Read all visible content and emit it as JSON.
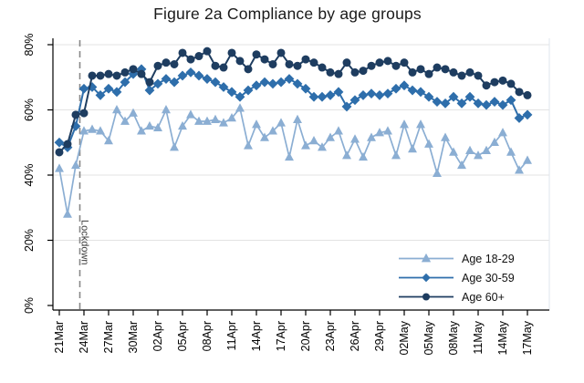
{
  "title": "Figure 2a Compliance by age groups",
  "chart_data": {
    "type": "line",
    "title": "Figure 2a Compliance by age groups",
    "grid": "horizontal",
    "legend_position": "bottom-right",
    "ylim": [
      0,
      84
    ],
    "y_tick_labels": [
      "0%",
      "20%",
      "40%",
      "60%",
      "80%"
    ],
    "y_tick_values": [
      0,
      20,
      40,
      60,
      80
    ],
    "x_tick_every_days": 3,
    "annotation": {
      "text": "Lockdown",
      "between_dates": [
        "23Mar",
        "24Mar"
      ],
      "style": "dashed-vertical-line"
    },
    "x_dates": [
      "21Mar",
      "22Mar",
      "23Mar",
      "24Mar",
      "25Mar",
      "26Mar",
      "27Mar",
      "28Mar",
      "29Mar",
      "30Mar",
      "31Mar",
      "01Apr",
      "02Apr",
      "03Apr",
      "04Apr",
      "05Apr",
      "06Apr",
      "07Apr",
      "08Apr",
      "09Apr",
      "10Apr",
      "11Apr",
      "12Apr",
      "13Apr",
      "14Apr",
      "15Apr",
      "16Apr",
      "17Apr",
      "18Apr",
      "19Apr",
      "20Apr",
      "21Apr",
      "22Apr",
      "23Apr",
      "24Apr",
      "25Apr",
      "26Apr",
      "27Apr",
      "28Apr",
      "29Apr",
      "30Apr",
      "01May",
      "02May",
      "03May",
      "04May",
      "05May",
      "06May",
      "07May",
      "08May",
      "09May",
      "10May",
      "11May",
      "12May",
      "13May",
      "14May",
      "15May",
      "16May",
      "17May"
    ],
    "series": [
      {
        "name": "Age 18-29",
        "marker": "triangle",
        "color": "#8BAED3",
        "values": [
          42,
          28,
          43,
          53.5,
          54,
          53.5,
          50.5,
          60,
          56.5,
          59,
          53.5,
          55,
          54.5,
          60,
          48.5,
          55,
          58.5,
          56.5,
          56.5,
          57,
          56,
          57.5,
          60.5,
          49,
          55.5,
          51.5,
          53.5,
          56,
          45.5,
          57,
          49,
          50.5,
          48.5,
          51.5,
          53.5,
          46,
          51,
          45.5,
          51.5,
          53,
          53.5,
          46,
          55.5,
          48,
          55.5,
          49.5,
          40.5,
          51.5,
          47,
          43,
          47.5,
          46,
          47.5,
          50,
          53,
          47,
          41.5,
          44.5
        ]
      },
      {
        "name": "Age 30-59",
        "marker": "diamond",
        "color": "#2E6EAB",
        "values": [
          50,
          48.5,
          55,
          66.5,
          67,
          64.5,
          66.5,
          65.5,
          68.5,
          71,
          72.5,
          66,
          68,
          69.5,
          68.5,
          70.5,
          71.5,
          70.5,
          69.5,
          68.5,
          67,
          65.5,
          64,
          66,
          67.5,
          68.5,
          68,
          68.5,
          69.5,
          68,
          66.5,
          64,
          64,
          64.5,
          65.5,
          61,
          63,
          64.5,
          65,
          64.5,
          65,
          66.5,
          67.5,
          66,
          65.5,
          64,
          62.5,
          62,
          64,
          62,
          64,
          62,
          61.5,
          62.5,
          61.5,
          63,
          57.5,
          58.5
        ]
      },
      {
        "name": "Age 60+",
        "marker": "circle",
        "color": "#1E3D60",
        "values": [
          47,
          49.5,
          58.5,
          59,
          70.5,
          70.5,
          71,
          70.5,
          71.5,
          72.5,
          71,
          68.5,
          73.5,
          74.5,
          74,
          77.5,
          75.5,
          76.5,
          78,
          73.5,
          73,
          77.5,
          75,
          72.5,
          77,
          75.5,
          74,
          77.5,
          74,
          73.5,
          75.5,
          74.5,
          73,
          71.5,
          71,
          74.5,
          71.5,
          72,
          73.5,
          74.5,
          75,
          73.5,
          74.5,
          71.5,
          72.5,
          71,
          73,
          72.5,
          71.5,
          70.5,
          71.5,
          70.5,
          67.5,
          68.5,
          69,
          68,
          65.5,
          64.5
        ]
      }
    ],
    "colors": {
      "grid": "#e3e3e3",
      "axis": "#000000",
      "lockdown_line": "#888888",
      "lockdown_text": "#3c3c3c",
      "plot_right_border": "#dfe5ec"
    }
  }
}
